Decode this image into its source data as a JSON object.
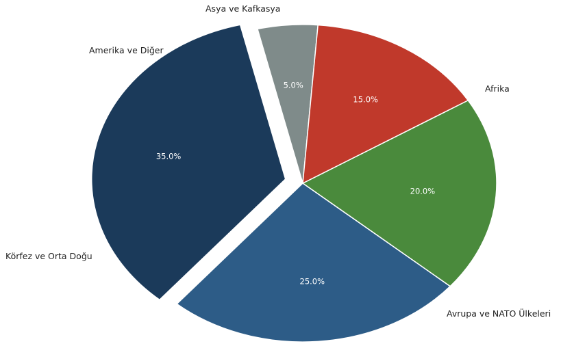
{
  "chart_data": {
    "type": "pie",
    "title": "",
    "categories": [
      "Afrika",
      "Avrupa ve NATO Ülkeleri",
      "Körfez ve Orta Doğu",
      "Amerika ve Diğer",
      "Asya ve Kafkasya"
    ],
    "values": [
      20.0,
      25.0,
      35.0,
      5.0,
      15.0
    ],
    "value_labels": [
      "20.0%",
      "25.0%",
      "35.0%",
      "5.0%",
      "15.0%"
    ],
    "colors": [
      "#4a8a3c",
      "#2d5c87",
      "#1b3a5a",
      "#7f8b8a",
      "#c0392b"
    ],
    "exploded": [
      false,
      false,
      true,
      false,
      false
    ],
    "legend": "none"
  }
}
